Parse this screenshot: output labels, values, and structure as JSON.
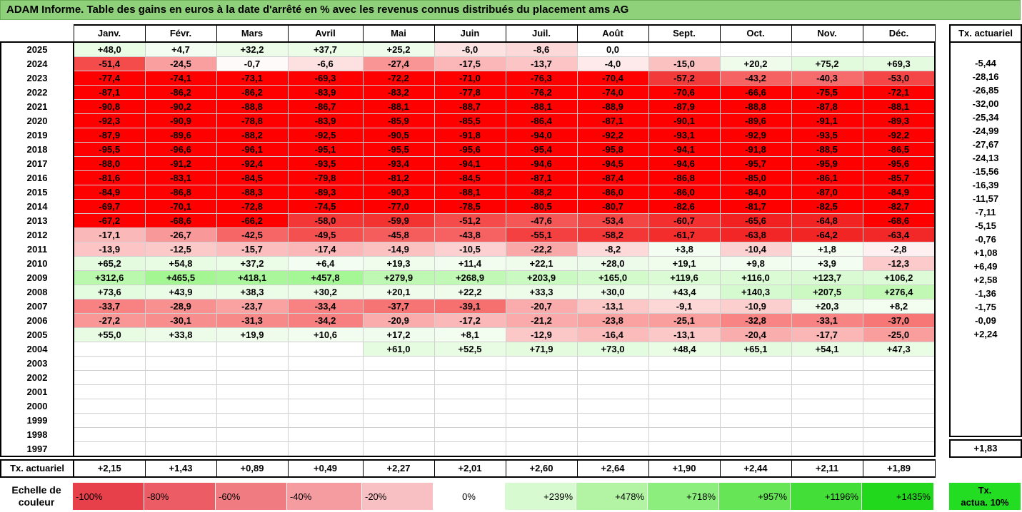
{
  "title": "ADAM Informe. Table des gains en euros à la date d'arrêté en % avec les revenus connus distribués du placement ams AG",
  "months": [
    "Janv.",
    "Févr.",
    "Mars",
    "Avril",
    "Mai",
    "Juin",
    "Juil.",
    "Août",
    "Sept.",
    "Oct.",
    "Nov.",
    "Déc."
  ],
  "side_header": "Tx. actuariel",
  "rows": [
    {
      "year": "2025",
      "values": [
        "+48,0",
        "+4,7",
        "+32,2",
        "+37,7",
        "+25,2",
        "-6,0",
        "-8,6",
        "0,0",
        "",
        "",
        "",
        ""
      ],
      "tx": ""
    },
    {
      "year": "2024",
      "values": [
        "-51,4",
        "-24,5",
        "-0,7",
        "-6,6",
        "-27,4",
        "-17,5",
        "-13,7",
        "-4,0",
        "-15,0",
        "+20,2",
        "+75,2",
        "+69,3"
      ],
      "tx": "-5,44"
    },
    {
      "year": "2023",
      "values": [
        "-77,4",
        "-74,1",
        "-73,1",
        "-69,3",
        "-72,2",
        "-71,0",
        "-76,3",
        "-70,4",
        "-57,2",
        "-43,2",
        "-40,3",
        "-53,0"
      ],
      "tx": "-28,16"
    },
    {
      "year": "2022",
      "values": [
        "-87,1",
        "-86,2",
        "-86,2",
        "-83,9",
        "-83,2",
        "-77,8",
        "-76,2",
        "-74,0",
        "-70,6",
        "-66,6",
        "-75,5",
        "-72,1"
      ],
      "tx": "-26,85"
    },
    {
      "year": "2021",
      "values": [
        "-90,8",
        "-90,2",
        "-88,8",
        "-86,7",
        "-88,1",
        "-88,7",
        "-88,1",
        "-88,9",
        "-87,9",
        "-88,8",
        "-87,8",
        "-88,1"
      ],
      "tx": "-32,00"
    },
    {
      "year": "2020",
      "values": [
        "-92,3",
        "-90,9",
        "-78,8",
        "-83,9",
        "-85,9",
        "-85,5",
        "-86,4",
        "-87,1",
        "-90,1",
        "-89,6",
        "-91,1",
        "-89,3"
      ],
      "tx": "-25,34"
    },
    {
      "year": "2019",
      "values": [
        "-87,9",
        "-89,6",
        "-88,2",
        "-92,5",
        "-90,5",
        "-91,8",
        "-94,0",
        "-92,2",
        "-93,1",
        "-92,9",
        "-93,5",
        "-92,2"
      ],
      "tx": "-24,99"
    },
    {
      "year": "2018",
      "values": [
        "-95,5",
        "-96,6",
        "-96,1",
        "-95,1",
        "-95,5",
        "-95,6",
        "-95,4",
        "-95,8",
        "-94,1",
        "-91,8",
        "-88,5",
        "-86,5"
      ],
      "tx": "-27,67"
    },
    {
      "year": "2017",
      "values": [
        "-88,0",
        "-91,2",
        "-92,4",
        "-93,5",
        "-93,4",
        "-94,1",
        "-94,6",
        "-94,5",
        "-94,6",
        "-95,7",
        "-95,9",
        "-95,6"
      ],
      "tx": "-24,13"
    },
    {
      "year": "2016",
      "values": [
        "-81,6",
        "-83,1",
        "-84,5",
        "-79,8",
        "-81,2",
        "-84,5",
        "-87,1",
        "-87,4",
        "-86,8",
        "-85,0",
        "-86,1",
        "-85,7"
      ],
      "tx": "-15,56"
    },
    {
      "year": "2015",
      "values": [
        "-84,9",
        "-86,8",
        "-88,3",
        "-89,3",
        "-90,3",
        "-88,1",
        "-88,2",
        "-86,0",
        "-86,0",
        "-84,0",
        "-87,0",
        "-84,9"
      ],
      "tx": "-16,39"
    },
    {
      "year": "2014",
      "values": [
        "-69,7",
        "-70,1",
        "-72,8",
        "-74,5",
        "-77,0",
        "-78,5",
        "-80,5",
        "-80,7",
        "-82,6",
        "-81,7",
        "-82,5",
        "-82,7"
      ],
      "tx": "-11,57"
    },
    {
      "year": "2013",
      "values": [
        "-67,2",
        "-68,6",
        "-66,2",
        "-58,0",
        "-59,9",
        "-51,2",
        "-47,6",
        "-53,4",
        "-60,7",
        "-65,6",
        "-64,8",
        "-68,6"
      ],
      "tx": "-7,11"
    },
    {
      "year": "2012",
      "values": [
        "-17,1",
        "-26,7",
        "-42,5",
        "-49,5",
        "-45,8",
        "-43,8",
        "-55,1",
        "-58,2",
        "-61,7",
        "-63,8",
        "-64,2",
        "-63,4"
      ],
      "tx": "-5,15"
    },
    {
      "year": "2011",
      "values": [
        "-13,9",
        "-12,5",
        "-15,7",
        "-17,4",
        "-14,9",
        "-10,5",
        "-22,2",
        "-8,2",
        "+3,8",
        "-10,4",
        "+1,8",
        "-2,8"
      ],
      "tx": "-0,76"
    },
    {
      "year": "2010",
      "values": [
        "+65,2",
        "+54,8",
        "+37,2",
        "+6,4",
        "+19,3",
        "+11,4",
        "+22,1",
        "+28,0",
        "+19,1",
        "+9,8",
        "+3,9",
        "-12,3"
      ],
      "tx": "+1,08"
    },
    {
      "year": "2009",
      "values": [
        "+312,6",
        "+465,5",
        "+418,1",
        "+457,8",
        "+279,9",
        "+268,9",
        "+203,9",
        "+165,0",
        "+119,6",
        "+116,0",
        "+123,7",
        "+106,2"
      ],
      "tx": "+6,49"
    },
    {
      "year": "2008",
      "values": [
        "+73,6",
        "+43,9",
        "+38,3",
        "+30,2",
        "+20,1",
        "+22,2",
        "+33,3",
        "+30,0",
        "+43,4",
        "+140,3",
        "+207,5",
        "+276,4"
      ],
      "tx": "+2,58"
    },
    {
      "year": "2007",
      "values": [
        "-33,7",
        "-28,9",
        "-23,7",
        "-33,4",
        "-37,7",
        "-39,1",
        "-20,7",
        "-13,1",
        "-9,1",
        "-10,9",
        "+20,3",
        "+8,2"
      ],
      "tx": "-1,36"
    },
    {
      "year": "2006",
      "values": [
        "-27,2",
        "-30,1",
        "-31,3",
        "-34,2",
        "-20,9",
        "-17,2",
        "-21,2",
        "-23,8",
        "-25,1",
        "-32,8",
        "-33,1",
        "-37,0"
      ],
      "tx": "-1,75"
    },
    {
      "year": "2005",
      "values": [
        "+55,0",
        "+33,8",
        "+19,9",
        "+10,6",
        "+17,2",
        "+8,1",
        "-12,9",
        "-16,4",
        "-13,1",
        "-20,4",
        "-17,7",
        "-25,0"
      ],
      "tx": "-0,09"
    },
    {
      "year": "2004",
      "values": [
        "",
        "",
        "",
        "",
        "+61,0",
        "+52,5",
        "+71,9",
        "+73,0",
        "+48,4",
        "+65,1",
        "+54,1",
        "+47,3"
      ],
      "tx": "+2,24"
    },
    {
      "year": "2003",
      "values": [
        "",
        "",
        "",
        "",
        "",
        "",
        "",
        "",
        "",
        "",
        "",
        ""
      ],
      "tx": ""
    },
    {
      "year": "2002",
      "values": [
        "",
        "",
        "",
        "",
        "",
        "",
        "",
        "",
        "",
        "",
        "",
        ""
      ],
      "tx": ""
    },
    {
      "year": "2001",
      "values": [
        "",
        "",
        "",
        "",
        "",
        "",
        "",
        "",
        "",
        "",
        "",
        ""
      ],
      "tx": ""
    },
    {
      "year": "2000",
      "values": [
        "",
        "",
        "",
        "",
        "",
        "",
        "",
        "",
        "",
        "",
        "",
        ""
      ],
      "tx": ""
    },
    {
      "year": "1999",
      "values": [
        "",
        "",
        "",
        "",
        "",
        "",
        "",
        "",
        "",
        "",
        "",
        ""
      ],
      "tx": ""
    },
    {
      "year": "1998",
      "values": [
        "",
        "",
        "",
        "",
        "",
        "",
        "",
        "",
        "",
        "",
        "",
        ""
      ],
      "tx": ""
    },
    {
      "year": "1997",
      "values": [
        "",
        "",
        "",
        "",
        "",
        "",
        "",
        "",
        "",
        "",
        "",
        ""
      ],
      "tx": ""
    }
  ],
  "actuarial": {
    "label": "Tx. actuariel",
    "values": [
      "+2,15",
      "+1,43",
      "+0,89",
      "+0,49",
      "+2,27",
      "+2,01",
      "+2,60",
      "+2,64",
      "+1,90",
      "+2,44",
      "+2,11",
      "+1,89"
    ],
    "side": "+1,83"
  },
  "scale": {
    "label_line1": "Echelle de",
    "label_line2": "couleur",
    "items": [
      {
        "label": "-100%",
        "color": "#e8404a",
        "align": "left"
      },
      {
        "label": "-80%",
        "color": "#ec5c64",
        "align": "left"
      },
      {
        "label": "-60%",
        "color": "#f07c82",
        "align": "left"
      },
      {
        "label": "-40%",
        "color": "#f49ca0",
        "align": "left"
      },
      {
        "label": "-20%",
        "color": "#f8c0c2",
        "align": "left"
      },
      {
        "label": "0%",
        "color": "#ffffff",
        "align": "center"
      },
      {
        "label": "+239%",
        "color": "#d8fad0",
        "align": "right"
      },
      {
        "label": "+478%",
        "color": "#b2f4a4",
        "align": "right"
      },
      {
        "label": "+718%",
        "color": "#8cee7c",
        "align": "right"
      },
      {
        "label": "+957%",
        "color": "#66e656",
        "align": "right"
      },
      {
        "label": "+1196%",
        "color": "#44de38",
        "align": "right"
      },
      {
        "label": "+1435%",
        "color": "#22d81c",
        "align": "right"
      }
    ],
    "side_line1": "Tx.",
    "side_line2": "actua. 10%",
    "side_color": "#22dd22"
  }
}
